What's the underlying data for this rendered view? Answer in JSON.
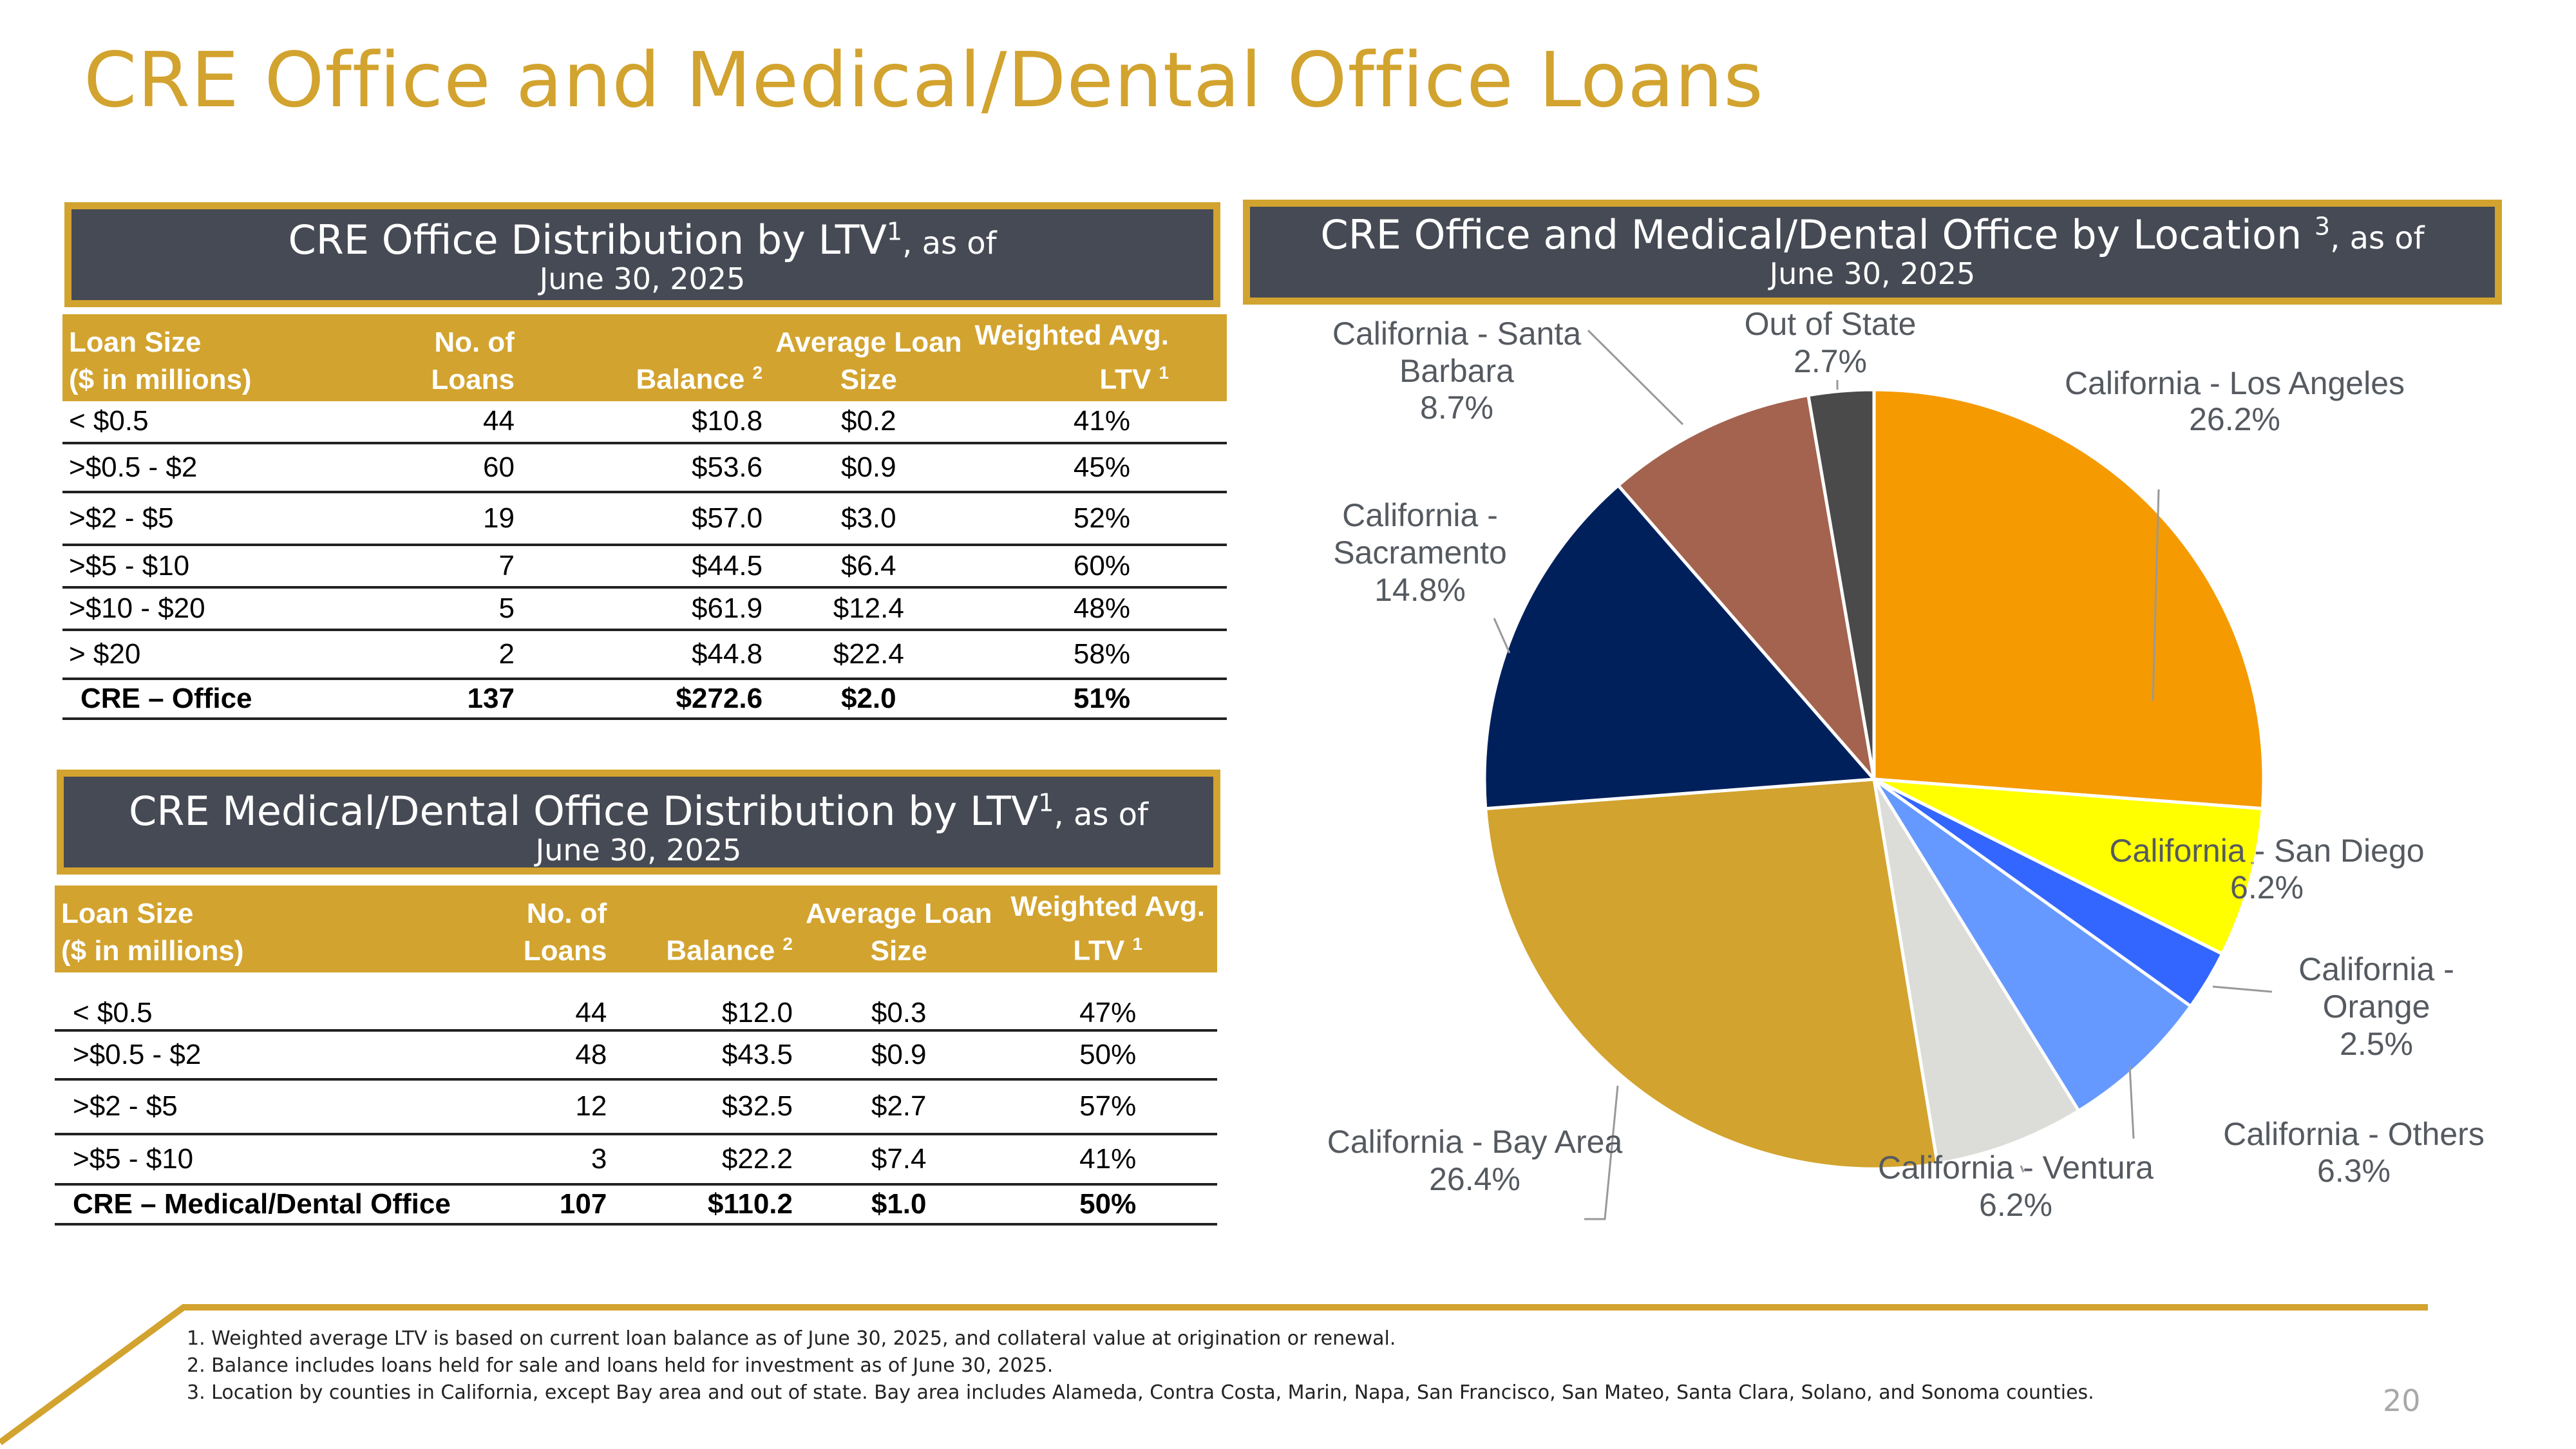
{
  "page": {
    "title": "CRE Office and Medical/Dental Office Loans",
    "page_number": "20"
  },
  "office_table": {
    "banner_title": "CRE Office Distribution by LTV",
    "banner_sup": "1",
    "banner_asof": ", as of",
    "banner_date": "June 30, 2025",
    "headers": {
      "loan_size_1": "Loan Size",
      "loan_size_2": "($ in millions)",
      "no_of_1": "No. of",
      "no_of_2": "Loans",
      "balance": "Balance",
      "balance_sup": "2",
      "avg_1": "Average Loan",
      "avg_2": "Size",
      "ltv_1": "Weighted Avg.",
      "ltv_2": "LTV",
      "ltv_sup": "1"
    },
    "rows": [
      {
        "size": "< $0.5",
        "loans": "44",
        "balance": "$10.8",
        "avg": "$0.2",
        "ltv": "41%"
      },
      {
        "size": ">$0.5 - $2",
        "loans": "60",
        "balance": "$53.6",
        "avg": "$0.9",
        "ltv": "45%"
      },
      {
        "size": ">$2 - $5",
        "loans": "19",
        "balance": "$57.0",
        "avg": "$3.0",
        "ltv": "52%"
      },
      {
        "size": ">$5 - $10",
        "loans": "7",
        "balance": "$44.5",
        "avg": "$6.4",
        "ltv": "60%"
      },
      {
        "size": ">$10 - $20",
        "loans": "5",
        "balance": "$61.9",
        "avg": "$12.4",
        "ltv": "48%"
      },
      {
        "size": "> $20",
        "loans": "2",
        "balance": "$44.8",
        "avg": "$22.4",
        "ltv": "58%"
      }
    ],
    "total": {
      "size": "CRE – Office",
      "loans": "137",
      "balance": "$272.6",
      "avg": "$2.0",
      "ltv": "51%"
    }
  },
  "medical_table": {
    "banner_title": "CRE Medical/Dental Office Distribution by LTV",
    "banner_sup": "1",
    "banner_asof": ", as of",
    "banner_date": "June 30, 2025",
    "headers": {
      "loan_size_1": "Loan Size",
      "loan_size_2": "($ in millions)",
      "no_of_1": "No. of",
      "no_of_2": "Loans",
      "balance": "Balance",
      "balance_sup": "2",
      "avg_1": "Average Loan",
      "avg_2": "Size",
      "ltv_1": "Weighted Avg.",
      "ltv_2": "LTV",
      "ltv_sup": "1"
    },
    "rows": [
      {
        "size": "< $0.5",
        "loans": "44",
        "balance": "$12.0",
        "avg": "$0.3",
        "ltv": "47%"
      },
      {
        "size": ">$0.5 - $2",
        "loans": "48",
        "balance": "$43.5",
        "avg": "$0.9",
        "ltv": "50%"
      },
      {
        "size": ">$2 - $5",
        "loans": "12",
        "balance": "$32.5",
        "avg": "$2.7",
        "ltv": "57%"
      },
      {
        "size": ">$5 - $10",
        "loans": "3",
        "balance": "$22.2",
        "avg": "$7.4",
        "ltv": "41%"
      }
    ],
    "total": {
      "size": "CRE – Medical/Dental Office",
      "loans": "107",
      "balance": "$110.2",
      "avg": "$1.0",
      "ltv": "50%"
    }
  },
  "location_banner": {
    "title": "CRE Office and Medical/Dental Office by Location",
    "sup": "3",
    "asof": ", as of",
    "date": "June 30, 2025"
  },
  "chart_data": {
    "type": "pie",
    "title": "CRE Office and Medical/Dental Office by Location, as of June 30, 2025",
    "start": "12 o'clock, clockwise",
    "slices": [
      {
        "label": "California - Los Angeles",
        "value": 26.2,
        "display": "26.2%",
        "color": "#F59A00"
      },
      {
        "label": "California - San Diego",
        "value": 6.2,
        "display": "6.2%",
        "color": "#FFFF00"
      },
      {
        "label": "California - Orange",
        "value": 2.5,
        "display": "2.5%",
        "color": "#3366FF"
      },
      {
        "label": "California - Others",
        "value": 6.3,
        "display": "6.3%",
        "color": "#6699FF"
      },
      {
        "label": "California - Ventura",
        "value": 6.2,
        "display": "6.2%",
        "color": "#DCDCD8"
      },
      {
        "label": "California - Bay Area",
        "value": 26.4,
        "display": "26.4%",
        "color": "#D2A32E"
      },
      {
        "label": "California - Sacramento",
        "value": 14.8,
        "display": "14.8%",
        "color": "#00205C"
      },
      {
        "label": "California - Santa Barbara",
        "value": 8.7,
        "display": "8.7%",
        "color": "#A3634F"
      },
      {
        "label": "Out of State",
        "value": 2.7,
        "display": "2.7%",
        "color": "#4A4A4A"
      }
    ]
  },
  "footnotes": [
    "1. Weighted average LTV is based on current loan balance as of June 30, 2025, and collateral value at origination or renewal.",
    "2. Balance includes loans held for sale and loans held for investment as of June 30, 2025.",
    "3. Location by counties in California, except Bay area and out of state. Bay area includes Alameda, Contra Costa, Marin, Napa, San Francisco, San Mateo, Santa Clara, Solano, and Sonoma counties."
  ]
}
